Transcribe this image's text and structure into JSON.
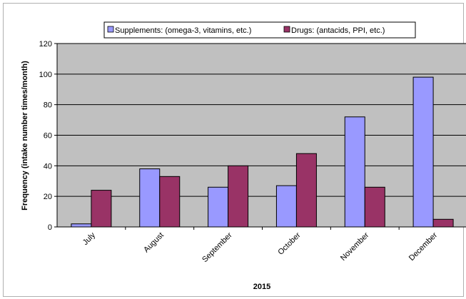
{
  "chart_data": {
    "type": "bar",
    "categories": [
      "July",
      "August",
      "September",
      "October",
      "November",
      "December"
    ],
    "series": [
      {
        "name": "Supplements: (omega-3, vitamins, etc.)",
        "color": "#9999ff",
        "values": [
          2,
          38,
          26,
          27,
          72,
          98
        ]
      },
      {
        "name": "Drugs: (antacids, PPI, etc.)",
        "color": "#993366",
        "values": [
          24,
          33,
          40,
          48,
          26,
          5
        ]
      }
    ],
    "title": "",
    "xlabel": "2015",
    "ylabel": "Frequency (intake number times/month)",
    "ylim": [
      0,
      120
    ],
    "yticks": [
      0,
      20,
      40,
      60,
      80,
      100,
      120
    ],
    "grid": true,
    "plot_background": "#c0c0c0",
    "legend_position": "top"
  }
}
